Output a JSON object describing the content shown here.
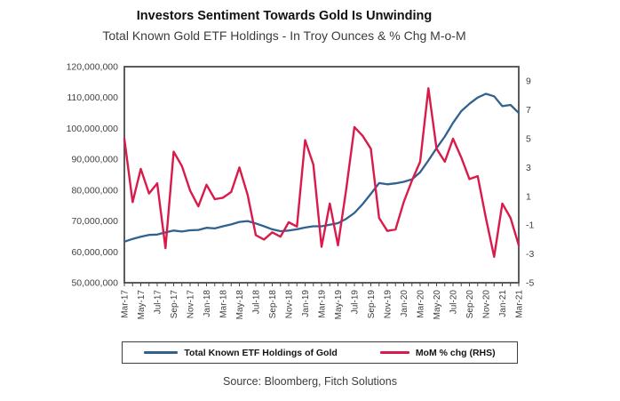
{
  "header": {
    "title": "Investors Sentiment Towards Gold Is Unwinding",
    "subtitle": "Total Known Gold ETF Holdings - In Troy Ounces & % Chg M-o-M"
  },
  "chart_data": {
    "type": "line",
    "x": [
      "Mar-17",
      "Apr-17",
      "May-17",
      "Jun-17",
      "Jul-17",
      "Aug-17",
      "Sep-17",
      "Oct-17",
      "Nov-17",
      "Dec-17",
      "Jan-18",
      "Feb-18",
      "Mar-18",
      "Apr-18",
      "May-18",
      "Jun-18",
      "Jul-18",
      "Aug-18",
      "Sep-18",
      "Oct-18",
      "Nov-18",
      "Dec-18",
      "Jan-19",
      "Feb-19",
      "Mar-19",
      "Apr-19",
      "May-19",
      "Jun-19",
      "Jul-19",
      "Aug-19",
      "Sep-19",
      "Oct-19",
      "Nov-19",
      "Dec-19",
      "Jan-20",
      "Feb-20",
      "Mar-20",
      "Apr-20",
      "May-20",
      "Jun-20",
      "Jul-20",
      "Aug-20",
      "Sep-20",
      "Oct-20",
      "Nov-20",
      "Dec-20",
      "Jan-21",
      "Feb-21",
      "Mar-21"
    ],
    "x_tick_every": 2,
    "series": [
      {
        "name": "Total Known ETF Holdings of Gold",
        "axis": "left",
        "color": "#31628f",
        "values": [
          63300000,
          64200000,
          64900000,
          65500000,
          65600000,
          66300000,
          66900000,
          66600000,
          67000000,
          67100000,
          67800000,
          67600000,
          68300000,
          68900000,
          69700000,
          70000000,
          69200000,
          68300000,
          67300000,
          66700000,
          66900000,
          67300000,
          67900000,
          68300000,
          68300000,
          68800000,
          69300000,
          70700000,
          72600000,
          75500000,
          78800000,
          82300000,
          81900000,
          82200000,
          82700000,
          83500000,
          85800000,
          89600000,
          93600000,
          97400000,
          101800000,
          105600000,
          108000000,
          110000000,
          111200000,
          110400000,
          107200000,
          107600000,
          105000000
        ]
      },
      {
        "name": "MoM % chg (RHS)",
        "axis": "right",
        "color": "#d81b4b",
        "values": [
          5.0,
          0.6,
          2.9,
          1.2,
          1.9,
          -2.6,
          4.1,
          3.1,
          1.4,
          0.3,
          1.8,
          0.8,
          0.9,
          1.3,
          3.0,
          1.1,
          -1.7,
          -2.0,
          -1.5,
          -1.8,
          -0.8,
          -1.1,
          4.9,
          3.2,
          -2.5,
          0.5,
          -2.4,
          1.5,
          5.8,
          5.2,
          4.3,
          -0.5,
          -1.4,
          -1.3,
          0.6,
          2.1,
          3.4,
          8.5,
          4.3,
          3.4,
          5.0,
          3.7,
          2.2,
          2.4,
          -0.5,
          -3.2,
          0.5,
          -0.5,
          -2.4
        ]
      }
    ],
    "left_axis": {
      "min": 50000000,
      "max": 120000000,
      "step": 10000000
    },
    "right_axis": {
      "min": -5,
      "max": 10,
      "tick_labels": [
        9,
        7,
        5,
        3,
        1,
        -1,
        -3,
        -5
      ]
    },
    "grid": false,
    "legend_position": "bottom",
    "title": "Investors Sentiment Towards Gold Is Unwinding",
    "xlabel": "",
    "ylabel_left": "Troy Ounces",
    "ylabel_right": "% Chg M-o-M"
  },
  "legend": {
    "items": [
      {
        "label": "Total Known ETF Holdings of Gold",
        "color": "#31628f"
      },
      {
        "label": "MoM % chg (RHS)",
        "color": "#d81b4b"
      }
    ]
  },
  "source": "Source: Bloomberg, Fitch Solutions"
}
